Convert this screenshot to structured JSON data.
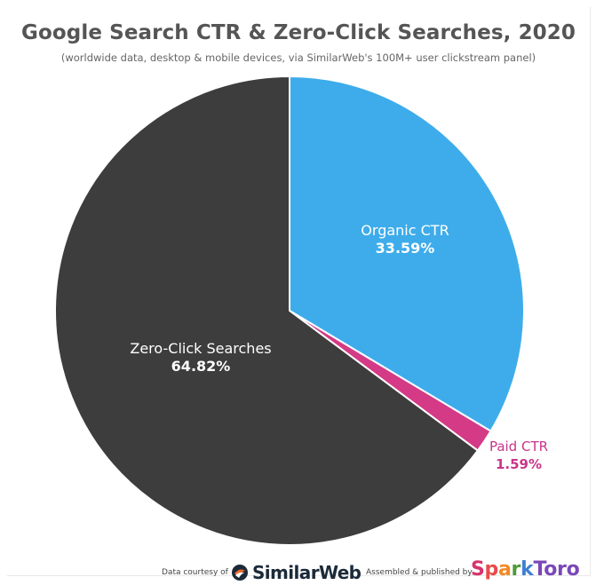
{
  "chart_data": {
    "type": "pie",
    "title": "Google Search CTR & Zero-Click Searches, 2020",
    "subtitle": "(worldwide data, desktop & mobile devices, via SimilarWeb's 100M+ user clickstream panel)",
    "slices": [
      {
        "label": "Organic CTR",
        "value": 33.59,
        "value_label": "33.59%",
        "color": "#3eacea",
        "label_color": "#ffffff"
      },
      {
        "label": "Paid CTR",
        "value": 1.59,
        "value_label": "1.59%",
        "color": "#d43a85",
        "label_color": "#c7358a"
      },
      {
        "label": "Zero-Click Searches",
        "value": 64.82,
        "value_label": "64.82%",
        "color": "#3d3d3d",
        "label_color": "#ffffff"
      }
    ],
    "start_angle_deg": 0,
    "direction": "clockwise",
    "slice_border_color": "#ffffff"
  },
  "footer": {
    "data_credit": "Data courtesy of",
    "data_brand": "SimilarWeb",
    "publish_credit": "Assembled & published by",
    "publish_brand": "SparkToro"
  }
}
